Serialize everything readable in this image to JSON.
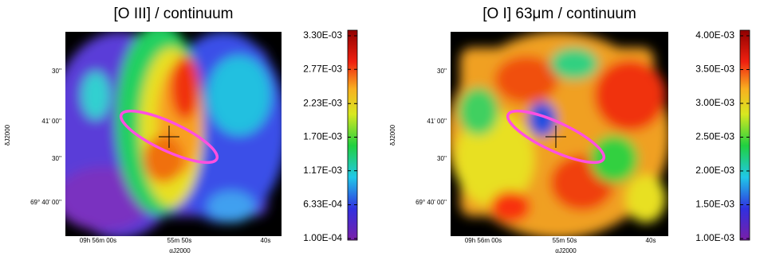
{
  "chart_data": [
    {
      "type": "heatmap",
      "title": "[O III] / continuum",
      "xlabel": "αJ2000",
      "ylabel": "δJ2000",
      "x_tick_labels": [
        "09h 56m 00s",
        "55m 50s",
        "40s"
      ],
      "y_tick_labels": [
        "30''",
        "41' 00''",
        "30''",
        "69° 40' 00''"
      ],
      "clim": [
        0.0001,
        0.0033
      ],
      "cticks": [
        {
          "value": 0.0033,
          "label": "3.30E-03"
        },
        {
          "value": 0.00277,
          "label": "2.77E-03"
        },
        {
          "value": 0.00223,
          "label": "2.23E-03"
        },
        {
          "value": 0.0017,
          "label": "1.70E-03"
        },
        {
          "value": 0.00117,
          "label": "1.17E-03"
        },
        {
          "value": 0.000633,
          "label": "6.33E-04"
        },
        {
          "value": 0.0001,
          "label": "1.00E-04"
        }
      ]
    },
    {
      "type": "heatmap",
      "title": "[O I] 63μm / continuum",
      "xlabel": "αJ2000",
      "ylabel": "δJ2000",
      "x_tick_labels": [
        "09h 56m 00s",
        "55m 50s",
        "40s"
      ],
      "y_tick_labels": [
        "30''",
        "41' 00''",
        "30''",
        "69° 40' 00''"
      ],
      "clim": [
        0.001,
        0.004
      ],
      "cticks": [
        {
          "value": 0.004,
          "label": "4.00E-03"
        },
        {
          "value": 0.0035,
          "label": "3.50E-03"
        },
        {
          "value": 0.003,
          "label": "3.00E-03"
        },
        {
          "value": 0.0025,
          "label": "2.50E-03"
        },
        {
          "value": 0.002,
          "label": "2.00E-03"
        },
        {
          "value": 0.0015,
          "label": "1.50E-03"
        },
        {
          "value": 0.001,
          "label": "1.00E-03"
        }
      ]
    }
  ]
}
